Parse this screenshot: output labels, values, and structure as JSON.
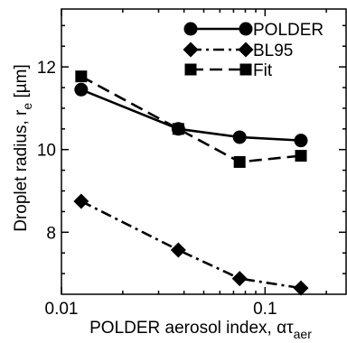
{
  "chart_data": {
    "type": "line",
    "xlabel": {
      "prefix": "POLDER aerosol index, ",
      "symbol": "ατ",
      "subscript": "aer"
    },
    "ylabel": {
      "prefix": "Droplet radius, r",
      "subscript": "e",
      "unit": " [µm]"
    },
    "x_scale": "log",
    "xlim": [
      0.01,
      0.25
    ],
    "ylim": [
      6.5,
      13.4
    ],
    "x_ticks": [
      {
        "value": 0.01,
        "label": "0.01"
      },
      {
        "value": 0.1,
        "label": "0.1"
      }
    ],
    "y_ticks": [
      {
        "value": 8,
        "label": "8"
      },
      {
        "value": 10,
        "label": "10"
      },
      {
        "value": 12,
        "label": "12"
      }
    ],
    "legend_position": "top-right",
    "series": [
      {
        "name": "POLDER",
        "marker": "circle",
        "line": "solid",
        "color": "#000000",
        "x": [
          0.0125,
          0.0375,
          0.075,
          0.15
        ],
        "y": [
          11.45,
          10.5,
          10.3,
          10.22
        ]
      },
      {
        "name": "BL95",
        "marker": "diamond",
        "line": "dash-dot",
        "color": "#000000",
        "x": [
          0.0125,
          0.0375,
          0.075,
          0.15
        ],
        "y": [
          8.75,
          7.57,
          6.88,
          6.65
        ]
      },
      {
        "name": "Fit",
        "marker": "square",
        "line": "dashed",
        "color": "#000000",
        "x": [
          0.0125,
          0.0375,
          0.075,
          0.15
        ],
        "y": [
          11.77,
          10.5,
          9.7,
          9.85
        ]
      }
    ]
  }
}
